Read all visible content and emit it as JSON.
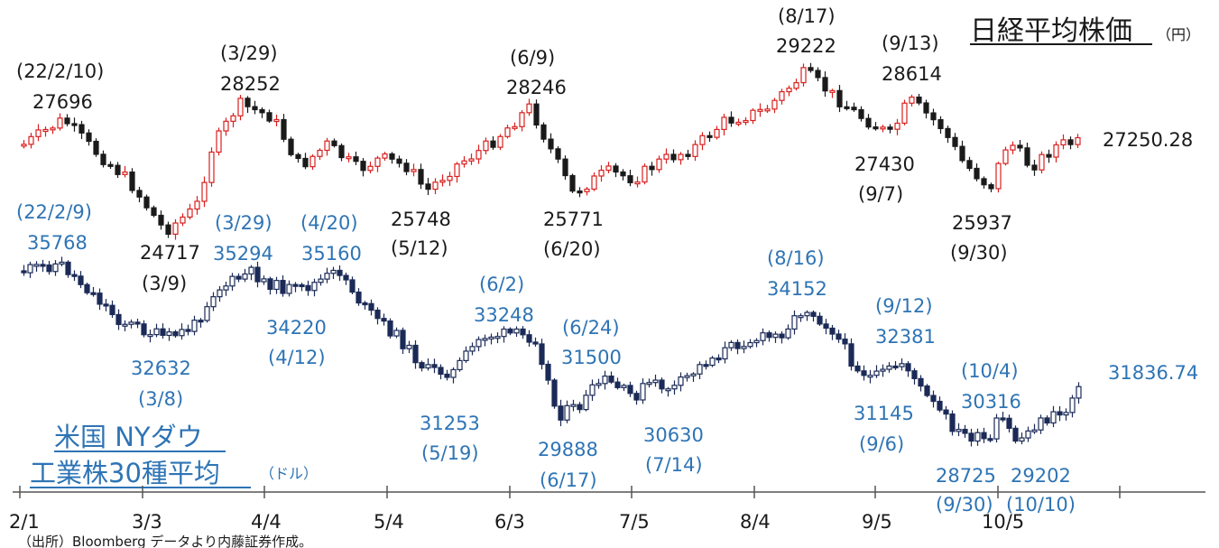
{
  "chart_data": [
    {
      "type": "candlestick",
      "title": "日経平均株価",
      "unit": "（円）",
      "currency": "円",
      "last_value": "27250.28",
      "colors": {
        "up": "#d9201e",
        "down": "#1a1a1a"
      },
      "annotations": [
        {
          "date": "22/2/10",
          "value": "27696",
          "label_date": "(22/2/10)",
          "kind": "high"
        },
        {
          "date": "3/9",
          "value": "24717",
          "label_date": "(3/9)",
          "kind": "low"
        },
        {
          "date": "3/29",
          "value": "28252",
          "label_date": "(3/29)",
          "kind": "high"
        },
        {
          "date": "5/12",
          "value": "25748",
          "label_date": "(5/12)",
          "kind": "low"
        },
        {
          "date": "6/9",
          "value": "28246",
          "label_date": "(6/9)",
          "kind": "high"
        },
        {
          "date": "6/20",
          "value": "25771",
          "label_date": "(6/20)",
          "kind": "low"
        },
        {
          "date": "8/17",
          "value": "29222",
          "label_date": "(8/17)",
          "kind": "high"
        },
        {
          "date": "9/7",
          "value": "27430",
          "label_date": "(9/7)",
          "kind": "low"
        },
        {
          "date": "9/13",
          "value": "28614",
          "label_date": "(9/13)",
          "kind": "high"
        },
        {
          "date": "9/30",
          "value": "25937",
          "label_date": "(9/30)",
          "kind": "low"
        }
      ]
    },
    {
      "type": "candlestick",
      "title_line1": "米国 NYダウ",
      "title_line2": "工業株30種平均",
      "unit": "（ドル）",
      "currency": "ドル",
      "last_value": "31836.74",
      "colors": {
        "up": "#1b2a57",
        "down": "#1b2a57"
      },
      "annotations": [
        {
          "date": "22/2/9",
          "value": "35768",
          "label_date": "(22/2/9)",
          "kind": "high"
        },
        {
          "date": "3/8",
          "value": "32632",
          "label_date": "(3/8)",
          "kind": "low"
        },
        {
          "date": "3/29",
          "value": "35294",
          "label_date": "(3/29)",
          "kind": "high"
        },
        {
          "date": "4/12",
          "value": "34220",
          "label_date": "(4/12)",
          "kind": "low"
        },
        {
          "date": "4/20",
          "value": "35160",
          "label_date": "(4/20)",
          "kind": "high"
        },
        {
          "date": "5/19",
          "value": "31253",
          "label_date": "(5/19)",
          "kind": "low"
        },
        {
          "date": "6/2",
          "value": "33248",
          "label_date": "(6/2)",
          "kind": "high"
        },
        {
          "date": "6/17",
          "value": "29888",
          "label_date": "(6/17)",
          "kind": "low"
        },
        {
          "date": "6/24",
          "value": "31500",
          "label_date": "(6/24)",
          "kind": "high"
        },
        {
          "date": "7/14",
          "value": "30630",
          "label_date": "(7/14)",
          "kind": "low"
        },
        {
          "date": "8/16",
          "value": "34152",
          "label_date": "(8/16)",
          "kind": "high"
        },
        {
          "date": "9/6",
          "value": "31145",
          "label_date": "(9/6)",
          "kind": "low"
        },
        {
          "date": "9/12",
          "value": "32381",
          "label_date": "(9/12)",
          "kind": "high"
        },
        {
          "date": "9/30",
          "value": "28725",
          "label_date": "(9/30)",
          "kind": "low"
        },
        {
          "date": "10/4",
          "value": "30316",
          "label_date": "(10/4)",
          "kind": "high"
        },
        {
          "date": "10/10",
          "value": "29202",
          "label_date": "(10/10)",
          "kind": "low"
        }
      ]
    }
  ],
  "x_axis": {
    "tick_labels": [
      "2/1",
      "3/3",
      "4/4",
      "5/4",
      "6/3",
      "7/5",
      "8/4",
      "9/5",
      "10/5"
    ]
  },
  "source_note": "（出所）Bloomberg データより内藤証券作成。"
}
